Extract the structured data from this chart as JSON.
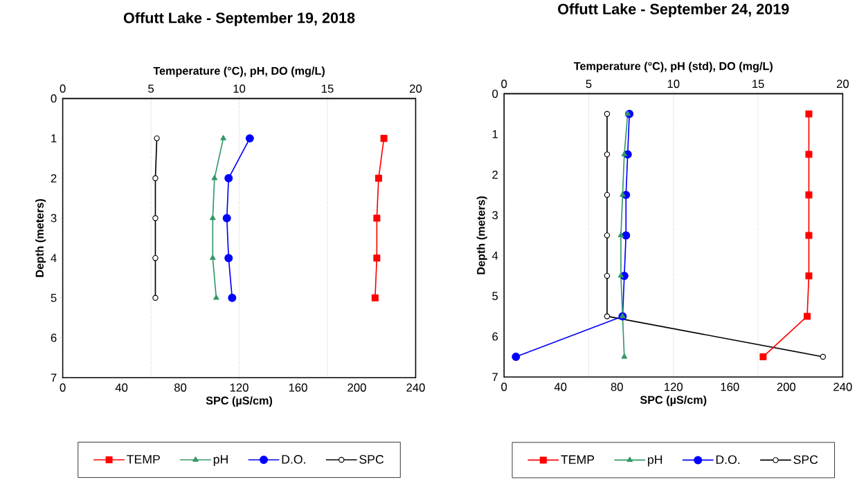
{
  "chart_data": [
    {
      "type": "line",
      "title": "Offutt Lake - September 19, 2018",
      "xlabel": "SPC (µS/cm)",
      "x2label": "Temperature (°C), pH, DO (mg/L)",
      "ylabel": "Depth (meters)",
      "xlim": [
        0,
        240
      ],
      "xticks": [
        0,
        40,
        80,
        120,
        160,
        200,
        240
      ],
      "x2lim": [
        0,
        20
      ],
      "x2ticks": [
        0,
        5,
        10,
        15,
        20
      ],
      "ylim": [
        7,
        0
      ],
      "yticks": [
        0,
        1,
        2,
        3,
        4,
        5,
        6,
        7
      ],
      "grid": "x2",
      "legend": "bottom",
      "line_style": "solid",
      "series": [
        {
          "name": "TEMP",
          "color": "#ff0000",
          "marker": "square",
          "axis": "x2",
          "x": [
            18.2,
            17.9,
            17.8,
            17.8,
            17.7
          ],
          "values": [
            1,
            2,
            3,
            4,
            5
          ]
        },
        {
          "name": "pH",
          "color": "#339966",
          "marker": "triangle",
          "axis": "x2",
          "x": [
            9.1,
            8.6,
            8.5,
            8.5,
            8.7
          ],
          "values": [
            1,
            2,
            3,
            4,
            5
          ]
        },
        {
          "name": "D.O.",
          "color": "#0000ff",
          "marker": "circle",
          "axis": "x2",
          "x": [
            10.6,
            9.4,
            9.3,
            9.4,
            9.6
          ],
          "values": [
            1,
            2,
            3,
            4,
            5
          ]
        },
        {
          "name": "SPC",
          "color": "#000000",
          "marker": "circle",
          "x": [
            64,
            63,
            63,
            63,
            63
          ],
          "values": [
            1,
            2,
            3,
            4,
            5
          ]
        }
      ]
    },
    {
      "type": "line",
      "title": "Offutt Lake - September 24, 2019",
      "xlabel": "SPC (µS/cm)",
      "x2label": "Temperature (°C), pH (std), DO (mg/L)",
      "ylabel": "Depth (meters)",
      "xlim": [
        0,
        240
      ],
      "xticks": [
        0,
        40,
        80,
        120,
        160,
        200,
        240
      ],
      "x2lim": [
        0,
        20
      ],
      "x2ticks": [
        0,
        5,
        10,
        15,
        20
      ],
      "ylim": [
        7,
        0
      ],
      "yticks": [
        0,
        1,
        2,
        3,
        4,
        5,
        6,
        7
      ],
      "grid": "x2",
      "legend": "bottom",
      "line_style": "solid",
      "series": [
        {
          "name": "TEMP",
          "color": "#ff0000",
          "marker": "square",
          "axis": "x2",
          "x": [
            18.0,
            18.0,
            18.0,
            18.0,
            18.0,
            17.9,
            15.3
          ],
          "values": [
            0.5,
            1.5,
            2.5,
            3.5,
            4.5,
            5.5,
            6.5
          ]
        },
        {
          "name": "pH",
          "color": "#339966",
          "marker": "triangle",
          "axis": "x2",
          "x": [
            7.3,
            7.1,
            7.0,
            6.9,
            6.9,
            7.0,
            7.1
          ],
          "values": [
            0.5,
            1.5,
            2.5,
            3.5,
            4.5,
            5.5,
            6.5
          ]
        },
        {
          "name": "D.O.",
          "color": "#0000ff",
          "marker": "circle",
          "axis": "x2",
          "x": [
            7.4,
            7.3,
            7.2,
            7.2,
            7.1,
            7.0,
            0.7
          ],
          "values": [
            0.5,
            1.5,
            2.5,
            3.5,
            4.5,
            5.5,
            6.5
          ]
        },
        {
          "name": "SPC",
          "color": "#000000",
          "marker": "circle",
          "x": [
            73,
            73,
            73,
            73,
            73,
            73,
            226
          ],
          "values": [
            0.5,
            1.5,
            2.5,
            3.5,
            4.5,
            5.5,
            6.5
          ]
        }
      ]
    }
  ]
}
